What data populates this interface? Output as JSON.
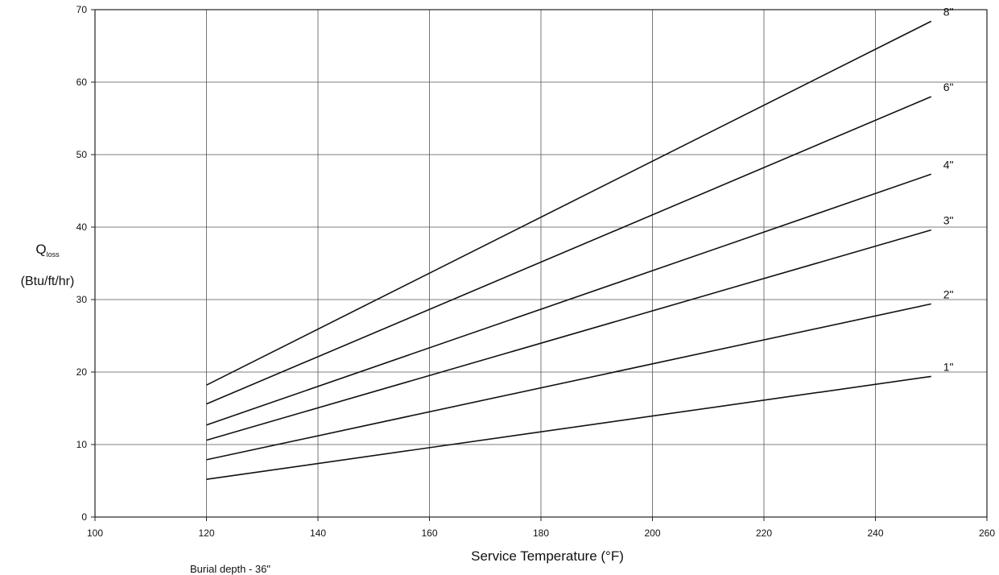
{
  "chart_data": {
    "type": "line",
    "ylabel_main": "Q",
    "ylabel_sub": "loss",
    "ylabel_units": "(Btu/ft/hr)",
    "xlabel": "Service Temperature (°F)",
    "note": "Burial depth - 36\"",
    "xlim": [
      100,
      260
    ],
    "ylim": [
      0,
      70
    ],
    "xticks": [
      100,
      120,
      140,
      160,
      180,
      200,
      220,
      240,
      260
    ],
    "yticks": [
      0,
      10,
      20,
      30,
      40,
      50,
      60,
      70
    ],
    "grid": true,
    "series": [
      {
        "name": "1\"",
        "x": [
          120,
          250
        ],
        "y": [
          5.2,
          19.4
        ]
      },
      {
        "name": "2\"",
        "x": [
          120,
          250
        ],
        "y": [
          7.9,
          29.4
        ]
      },
      {
        "name": "3\"",
        "x": [
          120,
          250
        ],
        "y": [
          10.6,
          39.6
        ]
      },
      {
        "name": "4\"",
        "x": [
          120,
          250
        ],
        "y": [
          12.7,
          47.3
        ]
      },
      {
        "name": "6\"",
        "x": [
          120,
          250
        ],
        "y": [
          15.6,
          58.0
        ]
      },
      {
        "name": "8\"",
        "x": [
          120,
          250
        ],
        "y": [
          18.2,
          68.4
        ]
      }
    ]
  }
}
